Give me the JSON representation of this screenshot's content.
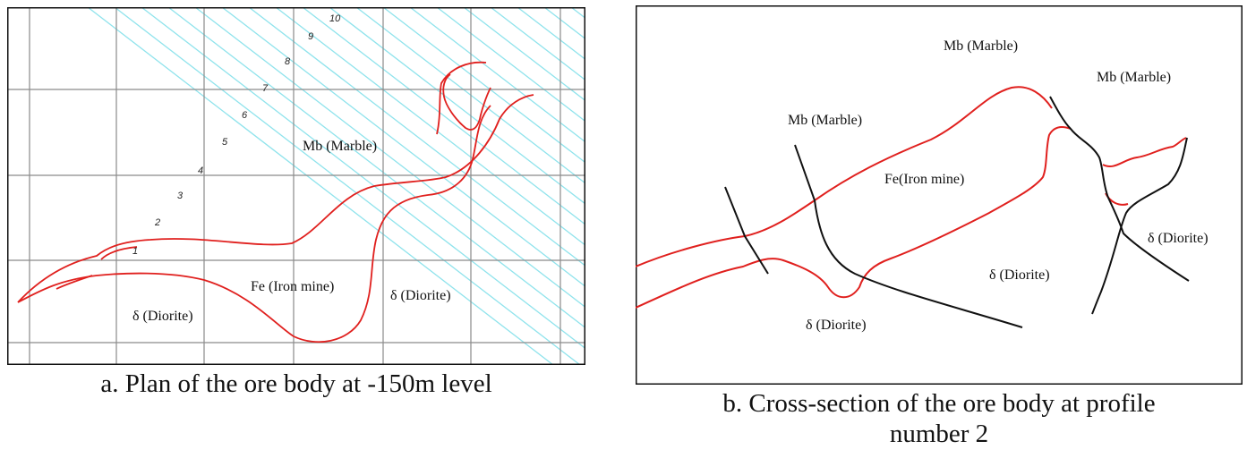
{
  "panel_a": {
    "caption": "a. Plan of the ore body at -150m level",
    "labels": {
      "marble": "Mb (Marble)",
      "iron": "Fe (Iron mine)",
      "diorite_left": "δ (Diorite)",
      "diorite_right": "δ (Diorite)"
    },
    "line_numbers": [
      "1",
      "2",
      "3",
      "4",
      "5",
      "6",
      "7",
      "8",
      "9",
      "10"
    ],
    "colors": {
      "ore_outline": "#e0201e",
      "grid": "#8a8a8a",
      "hatch": "#8fe3ec"
    }
  },
  "panel_b": {
    "caption_line1": "b. Cross-section of the ore body at profile",
    "caption_line2": "number 2",
    "labels": {
      "marble_left": "Mb (Marble)",
      "marble_top": "Mb (Marble)",
      "marble_right": "Mb (Marble)",
      "iron": "Fe(Iron mine)",
      "diorite_bottom": "δ (Diorite)",
      "diorite_mid": "δ (Diorite)",
      "diorite_right": "δ (Diorite)"
    },
    "colors": {
      "ore_outline": "#e0201e",
      "contact": "#111111"
    }
  }
}
